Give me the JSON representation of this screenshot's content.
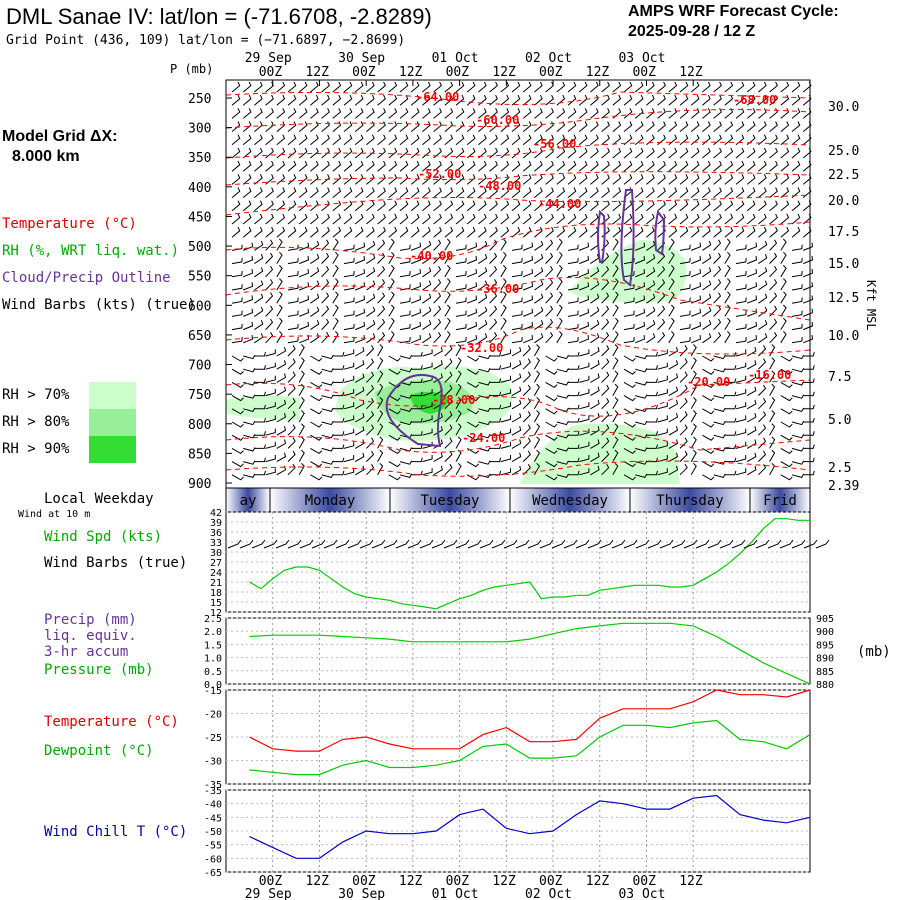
{
  "header": {
    "title": "DML Sanae IV:  lat/lon = (-71.6708, -2.8289)",
    "grid_point": "Grid Point (436, 109) lat/lon = (−71.6897, −2.8699)",
    "cycle_label": "AMPS WRF Forecast Cycle:",
    "cycle_value": "2025-09-28 / 12  Z"
  },
  "left_panel": {
    "model_grid_label": "Model Grid ΔX:",
    "model_grid_value": "8.000 km",
    "legend_temperature": "Temperature (°C)",
    "legend_rh": "RH (%, WRT liq. wat.)",
    "legend_cloud": "Cloud/Precip Outline",
    "legend_wind": "Wind Barbs (kts) (true)",
    "rh_70": "RH > 70%",
    "rh_80": "RH > 80%",
    "rh_90": "RH > 90%",
    "rh_colors": [
      "#ccffcc",
      "#99ee99",
      "#33dd33"
    ],
    "local_weekday": "Local Weekday",
    "wind_at_10m": "Wind at 10 m",
    "wind_spd": "Wind Spd (kts)",
    "wind_barbs": "Wind Barbs (true)",
    "precip": "Precip (mm)",
    "liq_equiv": "liq. equiv.",
    "accum": "3-hr accum",
    "pressure": "Pressure (mb)",
    "temperature": "Temperature (°C)",
    "dewpoint": "Dewpoint (°C)",
    "wind_chill": "Wind Chill T (°C)",
    "p_axis_unit": "P (mb)",
    "kft_label": "Kft MSL",
    "mb_label": "(mb)"
  },
  "colors": {
    "temperature": "#ff0000",
    "dewpoint": "#00cc00",
    "wind_speed": "#00cc00",
    "pressure": "#00cc00",
    "wind_chill": "#0000cc",
    "cloud_outline": "#663399",
    "weekday_bar": "#3a4aa0"
  },
  "chart_data": [
    {
      "type": "heatmap",
      "panel": "time-height cross section",
      "x_ticks_top": [
        "00Z",
        "12Z",
        "00Z",
        "12Z",
        "00Z",
        "12Z",
        "00Z",
        "12Z",
        "00Z",
        "12Z"
      ],
      "x_dates_top": [
        "29 Sep",
        "30 Sep",
        "01 Oct",
        "02 Oct",
        "03 Oct"
      ],
      "y_pressure_ticks": [
        250,
        300,
        350,
        400,
        450,
        500,
        550,
        600,
        650,
        700,
        750,
        800,
        850,
        900
      ],
      "y_height_ticks": [
        "30.0",
        "25.0",
        "22.5",
        "20.0",
        "17.5",
        "15.0",
        "12.5",
        "10.0",
        "7.5",
        "5.0",
        "2.5",
        "2.39"
      ],
      "temperature_labels": [
        "-64.00",
        "-60.00",
        "-56.00",
        "-52.00",
        "-48.00",
        "-44.00",
        "-40.00",
        "-36.00",
        "-32.00",
        "-28.00",
        "-24.00",
        "-20.00",
        "-16.00",
        "-68.00"
      ]
    },
    {
      "type": "line",
      "panel": "weekday",
      "weekdays": [
        "ay",
        "Monday",
        "Tuesday",
        "Wednesday",
        "Thursday",
        "Frid"
      ]
    },
    {
      "type": "line",
      "panel": "wind speed",
      "y_ticks": [
        12,
        15,
        18,
        21,
        24,
        27,
        30,
        33,
        36,
        39,
        42
      ],
      "ylim": [
        12,
        42
      ],
      "x": [
        0,
        3,
        6,
        9,
        12,
        15,
        18,
        21,
        24,
        27,
        30,
        33,
        36,
        39,
        42,
        45,
        48,
        51,
        54,
        57,
        60,
        63,
        66,
        69,
        72,
        75,
        78,
        81,
        84,
        87,
        90,
        93,
        96,
        99,
        102,
        105,
        108,
        111,
        114,
        117,
        120,
        123,
        126,
        129,
        132,
        135,
        138,
        141,
        144
      ],
      "series": [
        {
          "name": "Wind Spd (kts)",
          "values": [
            21,
            19,
            22,
            24.5,
            25.5,
            25.5,
            24.5,
            22,
            19.5,
            17.5,
            16.5,
            16,
            15.5,
            14.5,
            14,
            13.5,
            13,
            14.5,
            16,
            17,
            18.5,
            19.5,
            20,
            20.5,
            21,
            16,
            16.5,
            16.5,
            17,
            17,
            18.5,
            19,
            19.5,
            20,
            20,
            20,
            19.5,
            19.5,
            20,
            22,
            24,
            26.5,
            29.5,
            33,
            37,
            40,
            40,
            39.5,
            39.5
          ]
        }
      ]
    },
    {
      "type": "line",
      "panel": "precip/pressure",
      "y_ticks_left": [
        0.0,
        0.5,
        1.0,
        1.5,
        2.0,
        2.5
      ],
      "y_ticks_right": [
        880,
        885,
        890,
        895,
        900,
        905
      ],
      "ylim_left": [
        0,
        2.5
      ],
      "ylim_right": [
        880,
        905
      ],
      "x": [
        0,
        6,
        12,
        18,
        24,
        30,
        36,
        42,
        48,
        54,
        60,
        66,
        72,
        78,
        84,
        90,
        96,
        102,
        108,
        114,
        120,
        126,
        132,
        138,
        144
      ],
      "series": [
        {
          "name": "Pressure (mb)",
          "values": [
            898,
            898.5,
            898.5,
            898.5,
            898,
            897.5,
            897,
            896,
            896,
            896,
            896,
            896,
            897,
            899,
            901,
            902,
            903,
            903,
            903,
            902,
            898,
            893,
            888,
            884,
            880
          ]
        }
      ]
    },
    {
      "type": "line",
      "panel": "temperature/dewpoint",
      "y_ticks": [
        -15,
        -20,
        -25,
        -30,
        -35
      ],
      "ylim": [
        -35,
        -15
      ],
      "x": [
        0,
        6,
        12,
        18,
        24,
        30,
        36,
        42,
        48,
        54,
        60,
        66,
        72,
        78,
        84,
        90,
        96,
        102,
        108,
        114,
        120,
        126,
        132,
        138,
        144
      ],
      "series": [
        {
          "name": "Temperature (°C)",
          "values": [
            -25,
            -27.5,
            -28,
            -28,
            -25.5,
            -25,
            -26.5,
            -27.5,
            -27.5,
            -27.5,
            -24.5,
            -23,
            -26,
            -26,
            -25.5,
            -21,
            -19,
            -19,
            -19,
            -17.5,
            -15,
            -16,
            -16,
            -16.5,
            -15
          ]
        },
        {
          "name": "Dewpoint (°C)",
          "values": [
            -32,
            -32.5,
            -33,
            -33,
            -31,
            -30,
            -31.5,
            -31.5,
            -31,
            -30,
            -27,
            -26.5,
            -29.5,
            -29.5,
            -29,
            -25,
            -22.5,
            -22.5,
            -23,
            -22,
            -21.5,
            -25.5,
            -26,
            -27.5,
            -24.5
          ]
        }
      ]
    },
    {
      "type": "line",
      "panel": "wind chill",
      "y_ticks": [
        -35,
        -40,
        -45,
        -50,
        -55,
        -60,
        -65
      ],
      "ylim": [
        -65,
        -35
      ],
      "x": [
        0,
        6,
        12,
        18,
        24,
        30,
        36,
        42,
        48,
        54,
        60,
        66,
        72,
        78,
        84,
        90,
        96,
        102,
        108,
        114,
        120,
        126,
        132,
        138,
        144
      ],
      "series": [
        {
          "name": "Wind Chill T (°C)",
          "values": [
            -52,
            -56,
            -60,
            -60,
            -54,
            -50,
            -51,
            -51,
            -50,
            -44,
            -42,
            -49,
            -51,
            -50,
            -44,
            -39,
            -40,
            -42,
            -42,
            -38,
            -37,
            -44,
            -46,
            -47,
            -45
          ]
        }
      ]
    },
    {
      "type": "line",
      "panel": "bottom axis",
      "x_ticks": [
        "00Z",
        "12Z",
        "00Z",
        "12Z",
        "00Z",
        "12Z",
        "00Z",
        "12Z",
        "00Z",
        "12Z"
      ],
      "x_dates": [
        "29 Sep",
        "30 Sep",
        "01 Oct",
        "02 Oct",
        "03 Oct"
      ]
    }
  ]
}
